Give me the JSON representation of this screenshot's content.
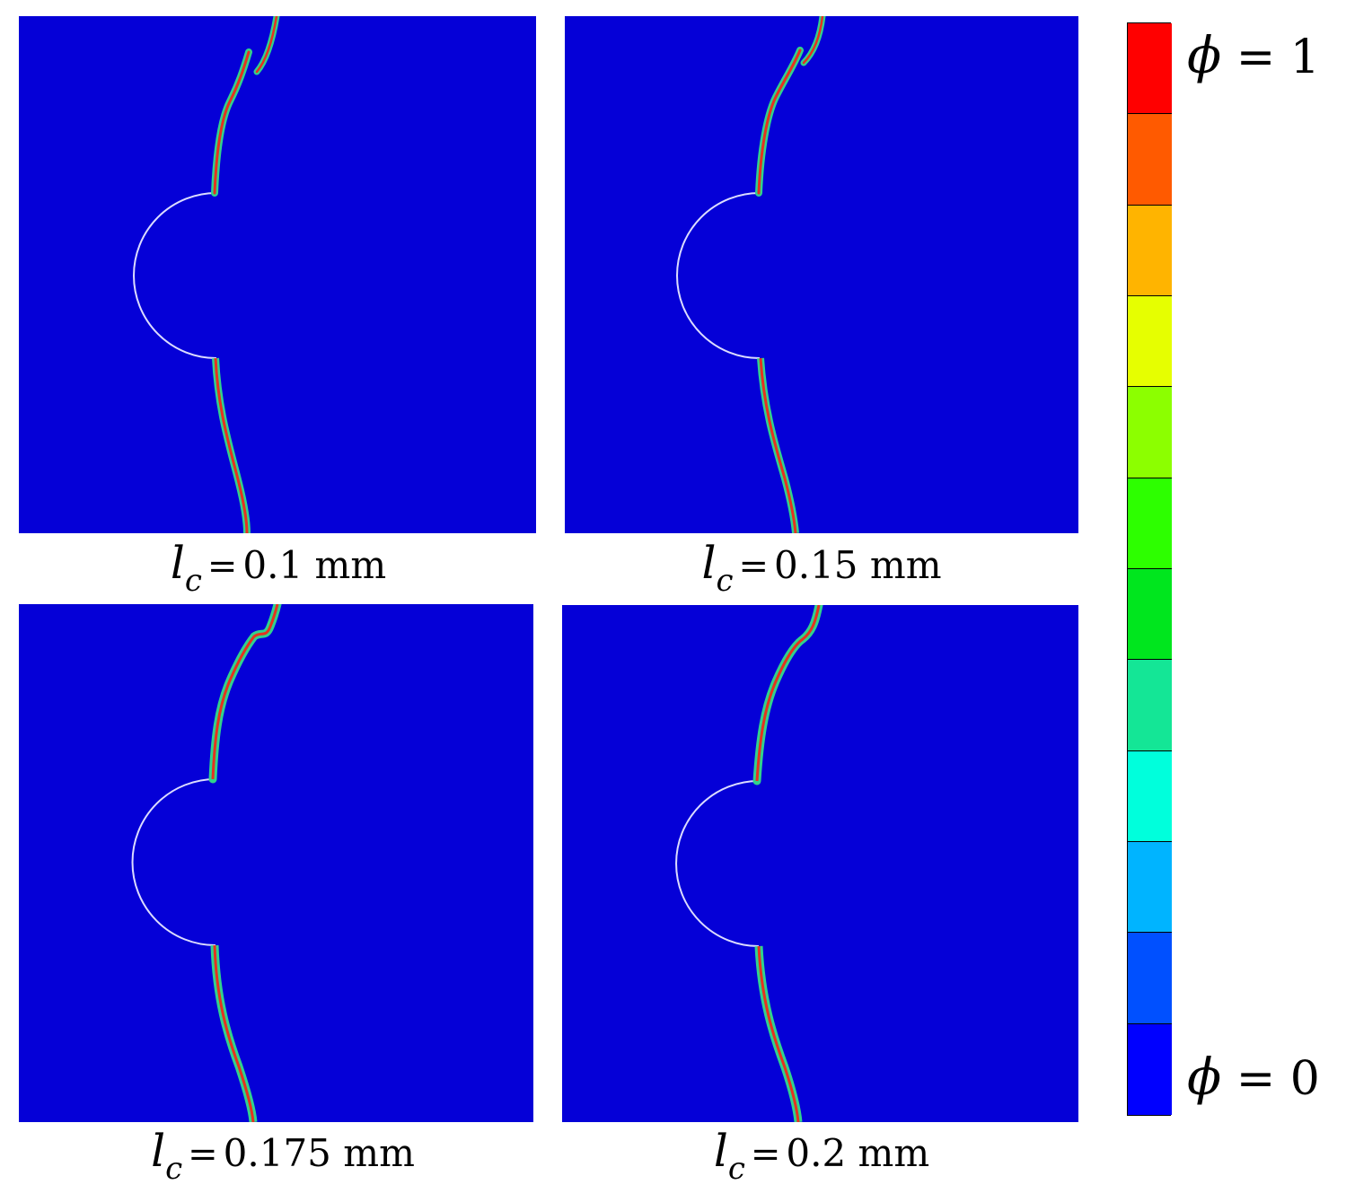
{
  "panels": [
    {
      "caption_symbol": "l",
      "caption_sub": "c",
      "caption_eq": "=",
      "caption_value": "0.1 mm"
    },
    {
      "caption_symbol": "l",
      "caption_sub": "c",
      "caption_eq": "=",
      "caption_value": "0.15 mm"
    },
    {
      "caption_symbol": "l",
      "caption_sub": "c",
      "caption_eq": "=",
      "caption_value": "0.175 mm"
    },
    {
      "caption_symbol": "l",
      "caption_sub": "c",
      "caption_eq": "=",
      "caption_value": "0.2 mm"
    }
  ],
  "colorbar": {
    "top_label_symbol": "ϕ",
    "top_label_rest": " = 1",
    "bottom_label_symbol": "ϕ",
    "bottom_label_rest": " = 0",
    "colors_top_to_bottom": [
      "#ff0000",
      "#ff5a00",
      "#ffb400",
      "#e6ff00",
      "#8cff00",
      "#2dff00",
      "#00e61e",
      "#14e696",
      "#00ffdc",
      "#00b4ff",
      "#0050ff",
      "#0000ff"
    ]
  },
  "colors": {
    "background_field": "#0500d7",
    "crack_core": "#e6321e",
    "crack_edge": "#32d28c",
    "interface": "#dcdcff"
  }
}
